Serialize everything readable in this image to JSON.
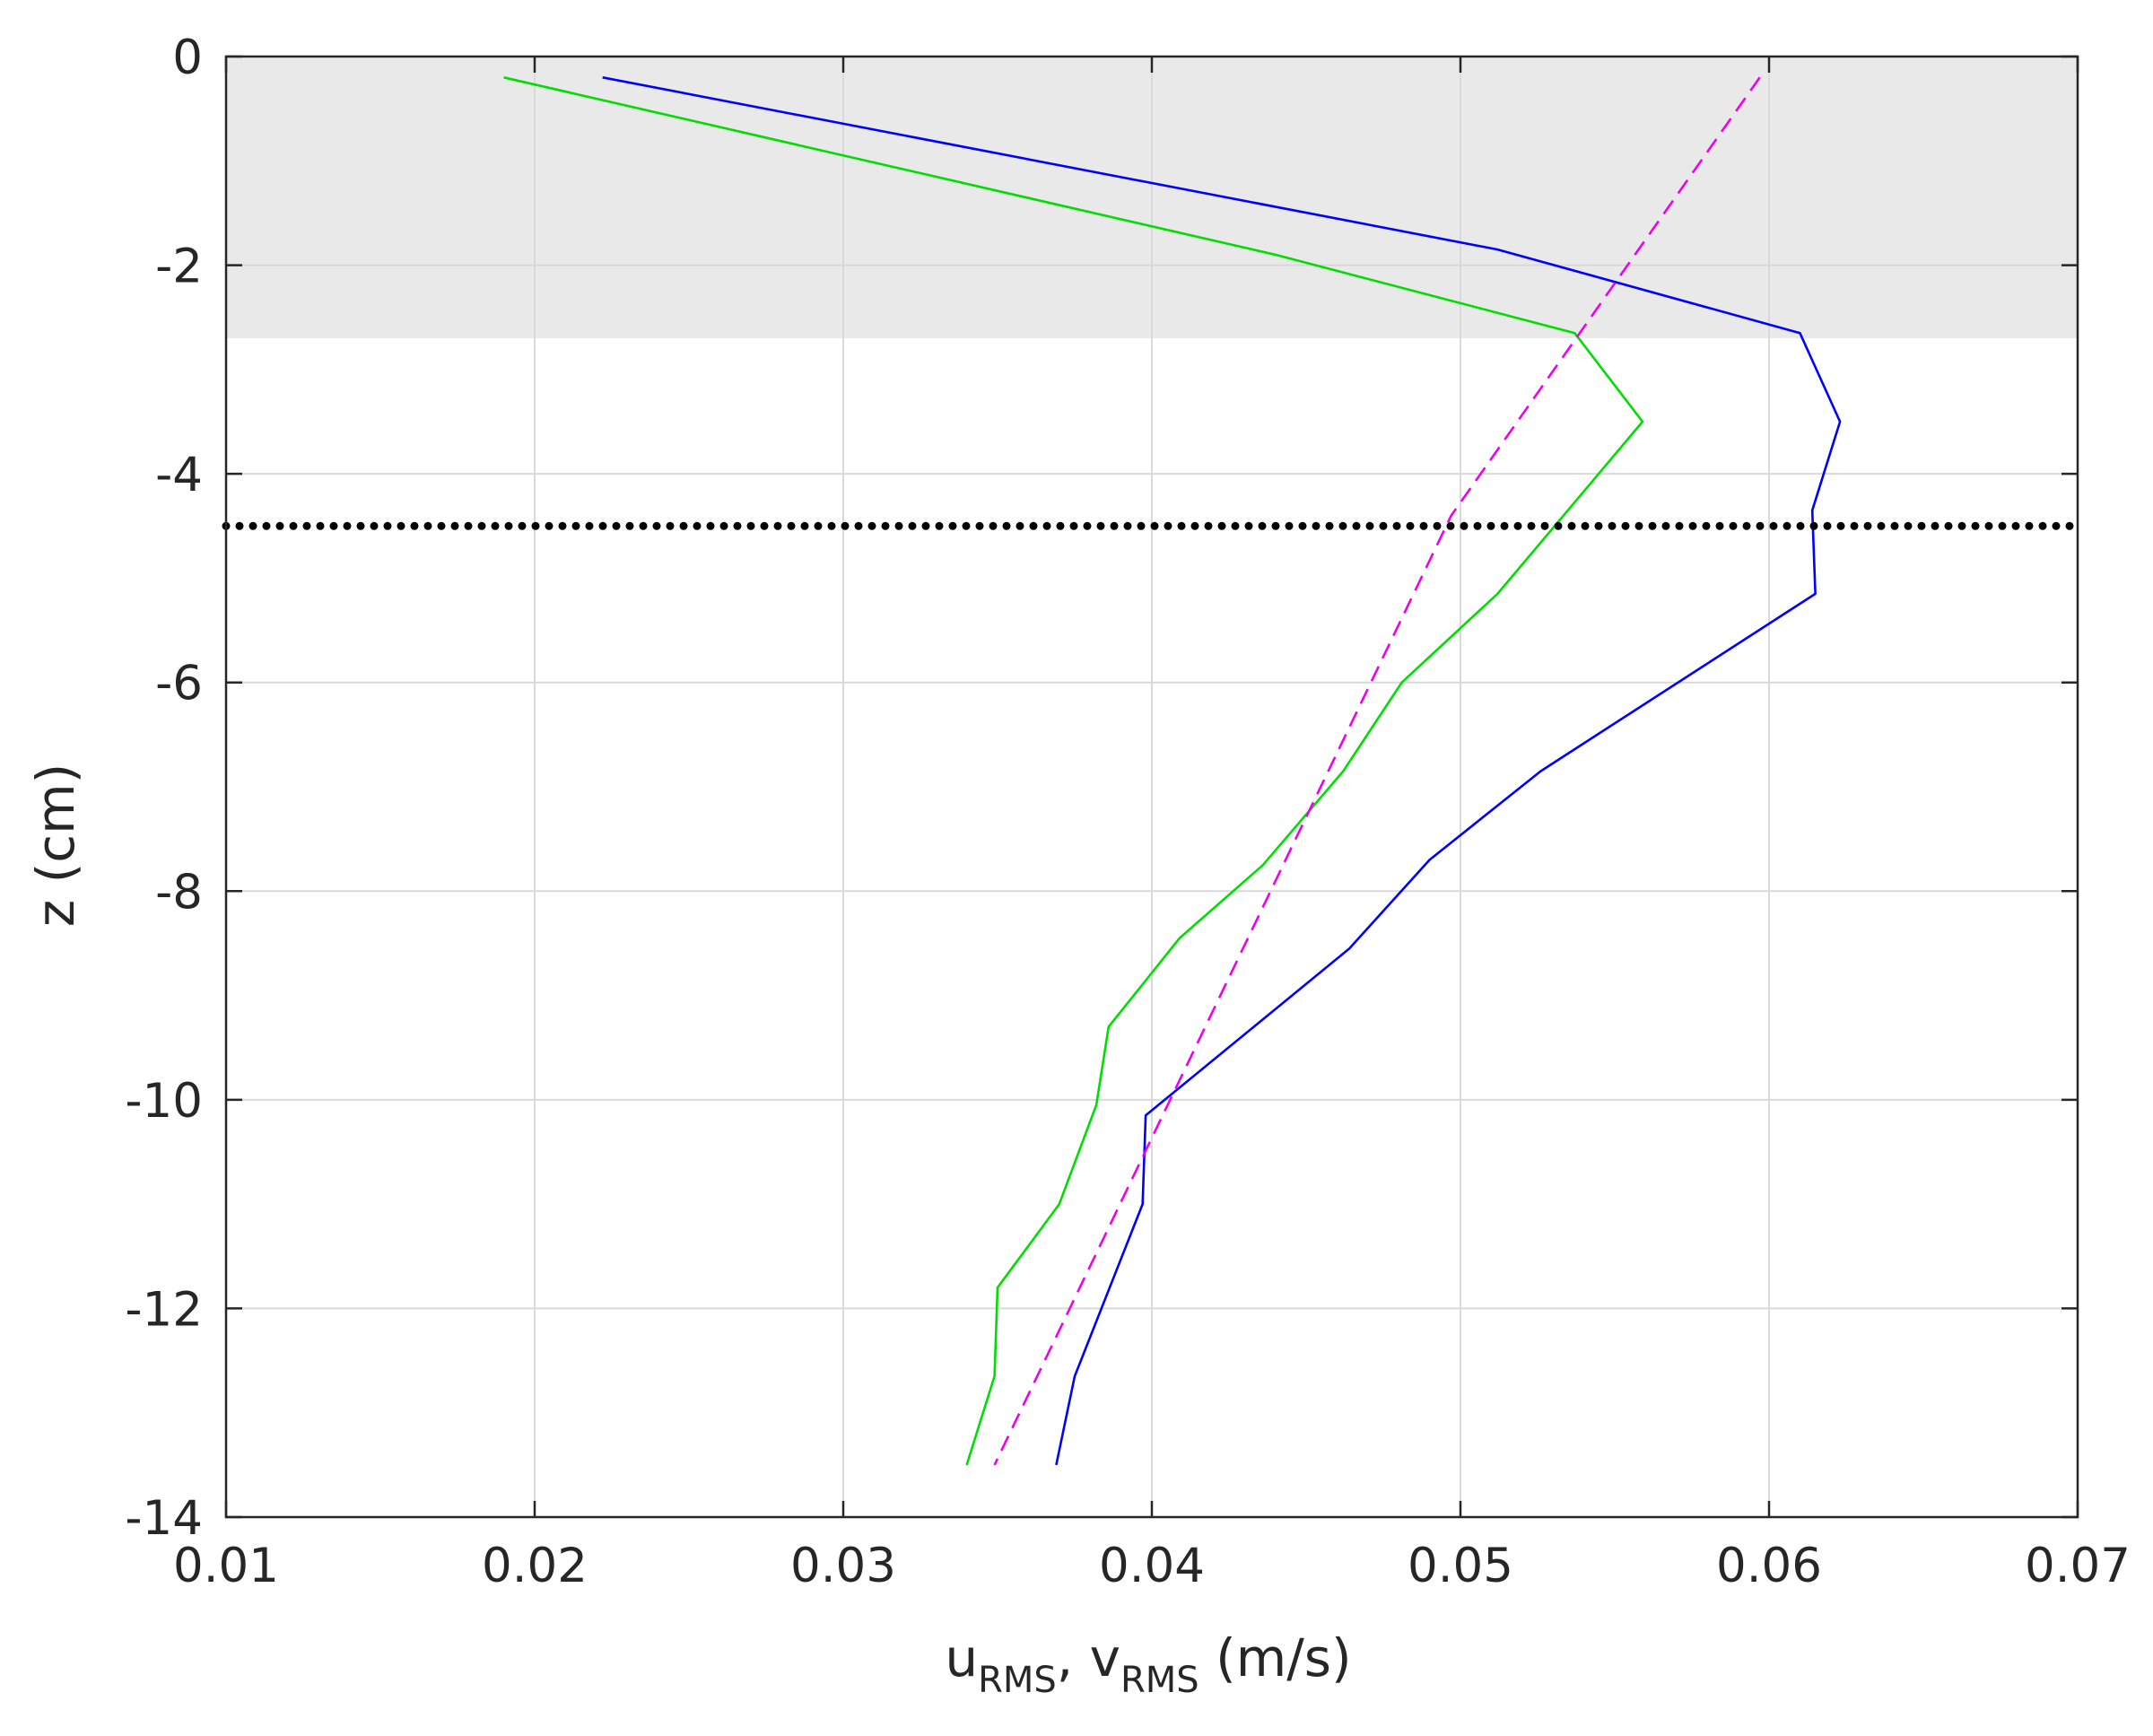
{
  "chart_data": {
    "type": "line",
    "xlabel": {
      "u_base": "u",
      "u_sub": "RMS",
      "sep": ", ",
      "v_base": "v",
      "v_sub": "RMS",
      "unit": " (m/s)"
    },
    "ylabel": "z (cm)",
    "xlim": [
      0.01,
      0.07
    ],
    "ylim": [
      -14,
      0
    ],
    "x_ticks": [
      0.01,
      0.02,
      0.03,
      0.04,
      0.05,
      0.06,
      0.07
    ],
    "x_tick_labels": [
      "0.01",
      "0.02",
      "0.03",
      "0.04",
      "0.05",
      "0.06",
      "0.07"
    ],
    "y_ticks": [
      0,
      -2,
      -4,
      -6,
      -8,
      -10,
      -12,
      -14
    ],
    "y_tick_labels": [
      "0",
      "-2",
      "-4",
      "-6",
      "-8",
      "-10",
      "-12",
      "-14"
    ],
    "grid": true,
    "shaded_band": {
      "y_from": 0,
      "y_to": -2.7,
      "color": "#e9e9e9"
    },
    "hline": {
      "y": -4.5,
      "style": "dotted",
      "color": "#000000"
    },
    "series": [
      {
        "color": "#0000ff",
        "style": "solid",
        "points": [
          [
            0.0222,
            -0.2
          ],
          [
            0.0512,
            -1.85
          ],
          [
            0.061,
            -2.65
          ],
          [
            0.0623,
            -3.5
          ],
          [
            0.0614,
            -4.35
          ],
          [
            0.0615,
            -5.15
          ],
          [
            0.0526,
            -6.85
          ],
          [
            0.049,
            -7.7
          ],
          [
            0.0464,
            -8.55
          ],
          [
            0.0398,
            -10.15
          ],
          [
            0.0397,
            -11.0
          ],
          [
            0.0375,
            -12.65
          ],
          [
            0.0369,
            -13.5
          ]
        ]
      },
      {
        "color": "#00dd00",
        "style": "solid",
        "points": [
          [
            0.019,
            -0.2
          ],
          [
            0.044,
            -1.9
          ],
          [
            0.0537,
            -2.65
          ],
          [
            0.0559,
            -3.5
          ],
          [
            0.0512,
            -5.15
          ],
          [
            0.0481,
            -6.0
          ],
          [
            0.0462,
            -6.85
          ],
          [
            0.0436,
            -7.75
          ],
          [
            0.0409,
            -8.45
          ],
          [
            0.0386,
            -9.3
          ],
          [
            0.0382,
            -10.05
          ],
          [
            0.037,
            -11.0
          ],
          [
            0.035,
            -11.8
          ],
          [
            0.0349,
            -12.65
          ],
          [
            0.034,
            -13.5
          ]
        ]
      },
      {
        "color": "#ee00ee",
        "style": "dashed",
        "points": [
          [
            0.0597,
            -0.2
          ],
          [
            0.0497,
            -4.4
          ],
          [
            0.0349,
            -13.5
          ]
        ]
      }
    ]
  }
}
